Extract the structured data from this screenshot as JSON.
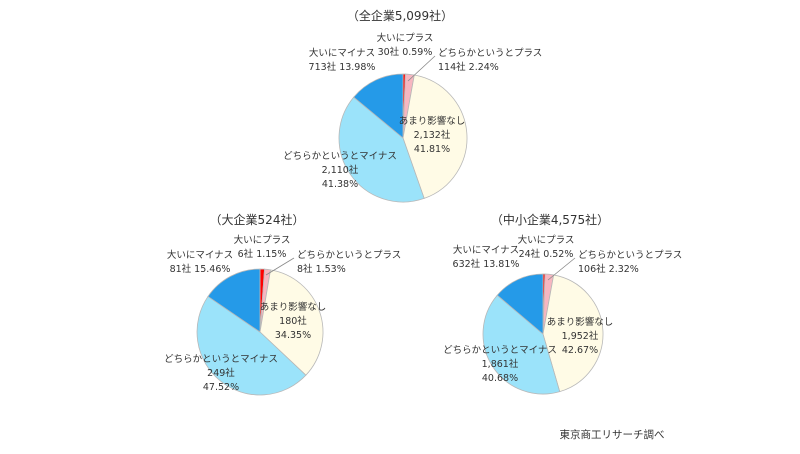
{
  "colors": {
    "cat0": "#ff0000",
    "cat1": "#f7b6c0",
    "cat2": "#fffbe6",
    "cat3": "#9be3fa",
    "cat4": "#259ae8",
    "edge": "#b8b8b8",
    "leader": "#888888"
  },
  "source": "東京商工リサーチ調べ",
  "chart_data": [
    {
      "type": "pie",
      "title": "（全企業5,099社）",
      "categories": [
        "大いにプラス",
        "どちらかというとプラス",
        "あまり影響なし",
        "どちらかというとマイナス",
        "大いにマイナス"
      ],
      "values": [
        30,
        114,
        2132,
        2110,
        713
      ],
      "counts": [
        "30社",
        "114社",
        "2,132社",
        "2,110社",
        "713社"
      ],
      "percents": [
        "0.59%",
        "2.24%",
        "41.81%",
        "41.38%",
        "13.98%"
      ]
    },
    {
      "type": "pie",
      "title": "（大企業524社）",
      "categories": [
        "大いにプラス",
        "どちらかというとプラス",
        "あまり影響なし",
        "どちらかというとマイナス",
        "大いにマイナス"
      ],
      "values": [
        6,
        8,
        180,
        249,
        81
      ],
      "counts": [
        "6社",
        "8社",
        "180社",
        "249社",
        "81社"
      ],
      "percents": [
        "1.15%",
        "1.53%",
        "34.35%",
        "47.52%",
        "15.46%"
      ]
    },
    {
      "type": "pie",
      "title": "（中小企業4,575社）",
      "categories": [
        "大いにプラス",
        "どちらかというとプラス",
        "あまり影響なし",
        "どちらかというとマイナス",
        "大いにマイナス"
      ],
      "values": [
        24,
        106,
        1952,
        1861,
        632
      ],
      "counts": [
        "24社",
        "106社",
        "1,952社",
        "1,861社",
        "632社"
      ],
      "percents": [
        "0.52%",
        "2.32%",
        "42.67%",
        "40.68%",
        "13.81%"
      ]
    }
  ]
}
